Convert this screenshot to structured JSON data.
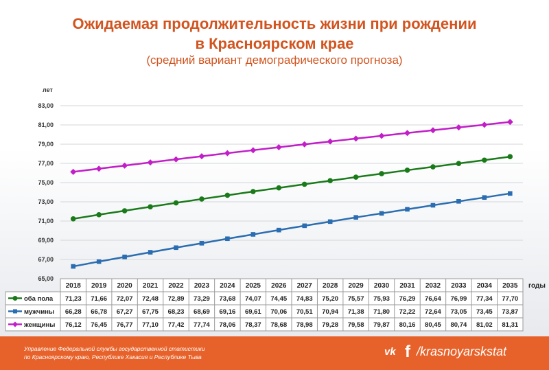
{
  "header": {
    "title_line1": "Ожидаемая продолжительность жизни при рождении",
    "title_line2": "в Красноярском крае",
    "subtitle": "(средний вариант демографического прогноза)"
  },
  "chart_data": {
    "type": "line",
    "ylabel": "лет",
    "xlabel": "годы",
    "ylim": [
      65,
      83
    ],
    "yticks": [
      "65,00",
      "67,00",
      "69,00",
      "71,00",
      "73,00",
      "75,00",
      "77,00",
      "79,00",
      "81,00",
      "83,00"
    ],
    "categories": [
      "2018",
      "2019",
      "2020",
      "2021",
      "2022",
      "2023",
      "2024",
      "2025",
      "2026",
      "2027",
      "2028",
      "2029",
      "2030",
      "2031",
      "2032",
      "2033",
      "2034",
      "2035"
    ],
    "series": [
      {
        "name": "оба пола",
        "color": "#1a7a1a",
        "marker": "circle",
        "values": [
          71.23,
          71.66,
          72.07,
          72.48,
          72.89,
          73.29,
          73.68,
          74.07,
          74.45,
          74.83,
          75.2,
          75.57,
          75.93,
          76.29,
          76.64,
          76.99,
          77.34,
          77.7
        ],
        "labels": [
          "71,23",
          "71,66",
          "72,07",
          "72,48",
          "72,89",
          "73,29",
          "73,68",
          "74,07",
          "74,45",
          "74,83",
          "75,20",
          "75,57",
          "75,93",
          "76,29",
          "76,64",
          "76,99",
          "77,34",
          "77,70"
        ]
      },
      {
        "name": "мужчины",
        "color": "#2a6db0",
        "marker": "square",
        "values": [
          66.28,
          66.78,
          67.27,
          67.75,
          68.23,
          68.69,
          69.16,
          69.61,
          70.06,
          70.51,
          70.94,
          71.38,
          71.8,
          72.22,
          72.64,
          73.05,
          73.45,
          73.87
        ],
        "labels": [
          "66,28",
          "66,78",
          "67,27",
          "67,75",
          "68,23",
          "68,69",
          "69,16",
          "69,61",
          "70,06",
          "70,51",
          "70,94",
          "71,38",
          "71,80",
          "72,22",
          "72,64",
          "73,05",
          "73,45",
          "73,87"
        ]
      },
      {
        "name": "женщины",
        "color": "#c21ec8",
        "marker": "diamond",
        "values": [
          76.12,
          76.45,
          76.77,
          77.1,
          77.42,
          77.74,
          78.06,
          78.37,
          78.68,
          78.98,
          79.28,
          79.58,
          79.87,
          80.16,
          80.45,
          80.74,
          81.02,
          81.31
        ],
        "labels": [
          "76,12",
          "76,45",
          "76,77",
          "77,10",
          "77,42",
          "77,74",
          "78,06",
          "78,37",
          "78,68",
          "78,98",
          "79,28",
          "79,58",
          "79,87",
          "80,16",
          "80,45",
          "80,74",
          "81,02",
          "81,31"
        ]
      }
    ]
  },
  "footer": {
    "line1": "Управление Федеральной службы государственной статистики",
    "line2": "по Красноярскому краю, Республике Хакасия и Республике Тыва",
    "vk_icon": "vk",
    "fb_icon": "f",
    "handle": "/krasnoyarskstat"
  }
}
